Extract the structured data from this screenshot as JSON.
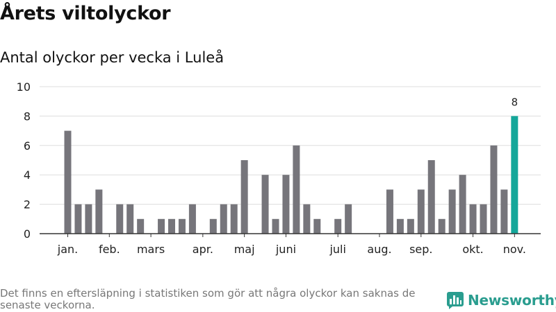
{
  "title": "Årets viltolyckor",
  "chart_data": {
    "type": "bar",
    "title": "Antal olyckor per vecka i Luleå",
    "xlabel": "",
    "ylabel": "",
    "ylim": [
      0,
      10
    ],
    "yticks": [
      0,
      2,
      4,
      6,
      8,
      10
    ],
    "grid": true,
    "x_tick_labels": [
      {
        "label": "jan.",
        "week": 1
      },
      {
        "label": "feb.",
        "week": 5
      },
      {
        "label": "mars",
        "week": 9
      },
      {
        "label": "apr.",
        "week": 14
      },
      {
        "label": "maj",
        "week": 18
      },
      {
        "label": "juni",
        "week": 22
      },
      {
        "label": "juli",
        "week": 27
      },
      {
        "label": "aug.",
        "week": 31
      },
      {
        "label": "sep.",
        "week": 35
      },
      {
        "label": "okt.",
        "week": 40
      },
      {
        "label": "nov.",
        "week": 44
      }
    ],
    "weeks": [
      1,
      2,
      3,
      4,
      5,
      6,
      7,
      8,
      9,
      10,
      11,
      12,
      13,
      14,
      15,
      16,
      17,
      18,
      19,
      20,
      21,
      22,
      23,
      24,
      25,
      26,
      27,
      28,
      29,
      30,
      31,
      32,
      33,
      34,
      35,
      36,
      37,
      38,
      39,
      40,
      41,
      42,
      43,
      44
    ],
    "values": [
      7,
      2,
      2,
      3,
      0,
      2,
      2,
      1,
      0,
      1,
      1,
      1,
      2,
      0,
      1,
      2,
      2,
      5,
      0,
      4,
      1,
      4,
      6,
      2,
      1,
      0,
      1,
      2,
      0,
      0,
      0,
      3,
      1,
      1,
      3,
      5,
      1,
      3,
      4,
      2,
      2,
      6,
      3,
      8
    ],
    "highlight_index": 43,
    "highlight_label": "8",
    "colors": {
      "bar": "#76757b",
      "highlight": "#14a79a",
      "grid": "#dddddd",
      "axis": "#333333"
    }
  },
  "footnote": "Det finns en eftersläpning i statistiken som gör att några olyckor kan saknas de senaste veckorna.",
  "logo": {
    "text": "Newsworthy",
    "icon": "bar-chart-logo-icon",
    "color": "#2a9d8f"
  }
}
